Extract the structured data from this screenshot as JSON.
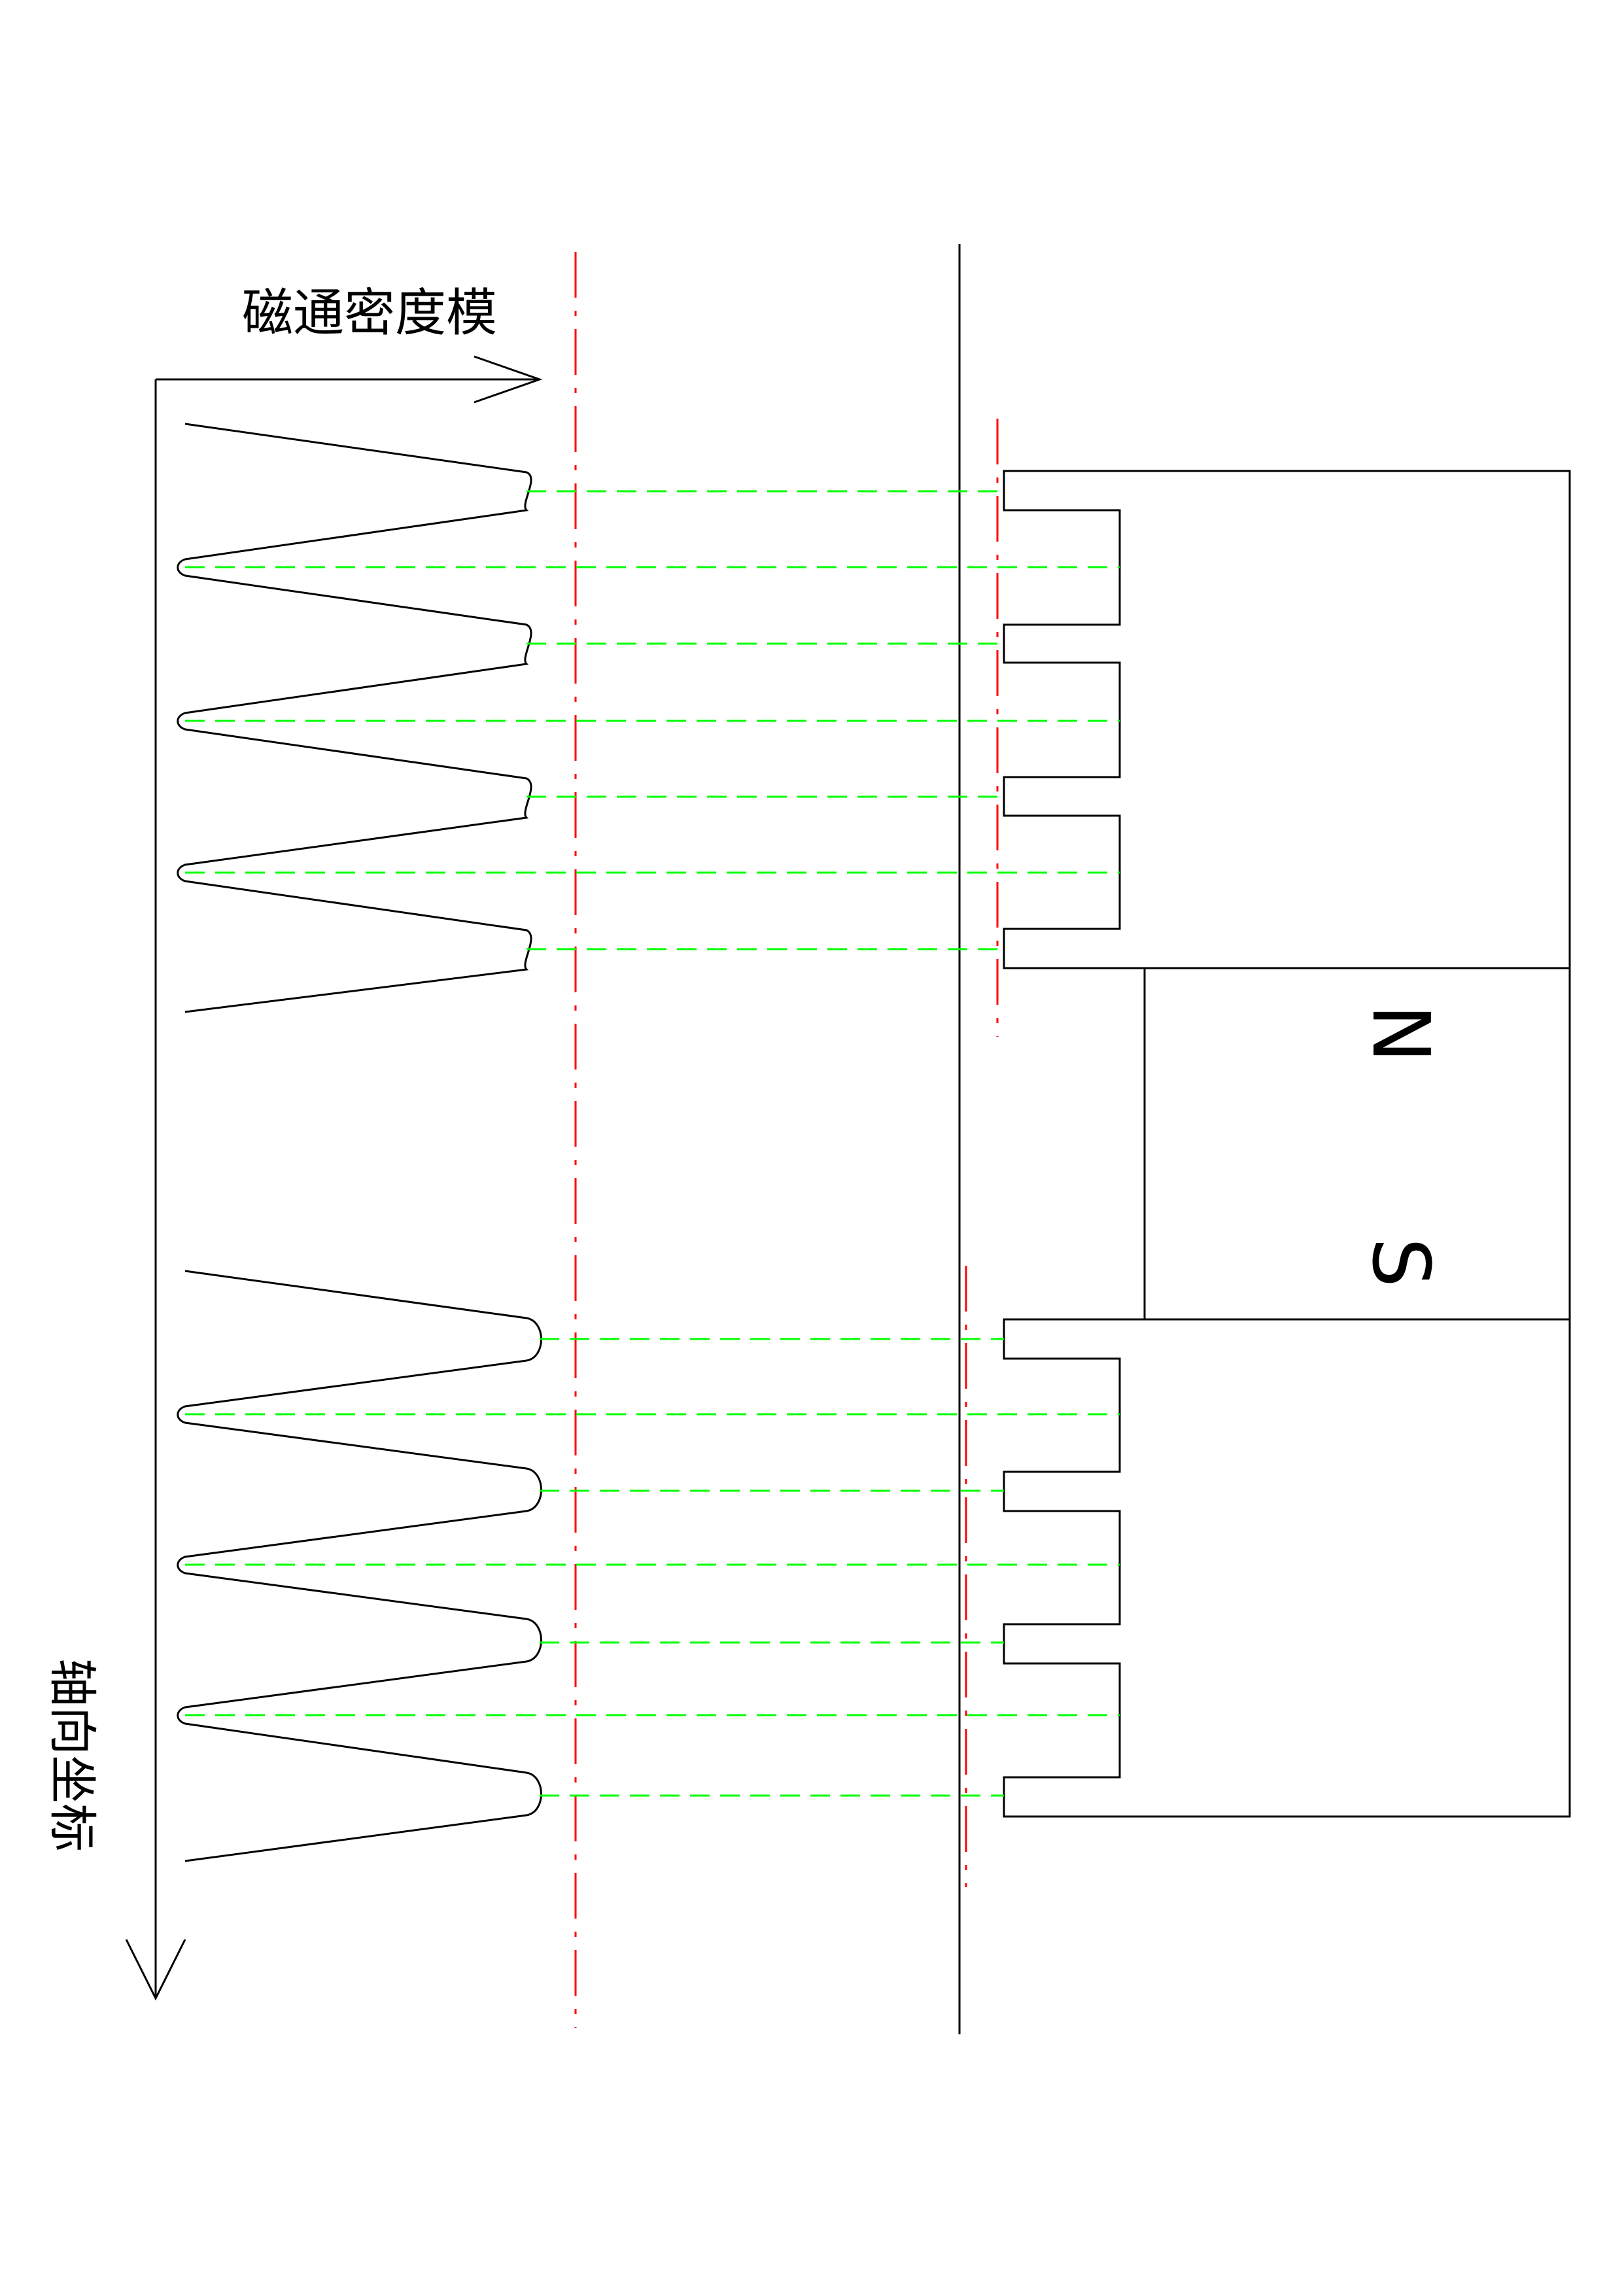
{
  "labels": {
    "y_axis": "磁通密度模",
    "x_axis": "轴向坐标",
    "pole_n": "N",
    "pole_s": "S"
  },
  "colors": {
    "outline": "#000000",
    "center_line": "#ff0000",
    "projection": "#00ff00",
    "background": "#ffffff"
  }
}
